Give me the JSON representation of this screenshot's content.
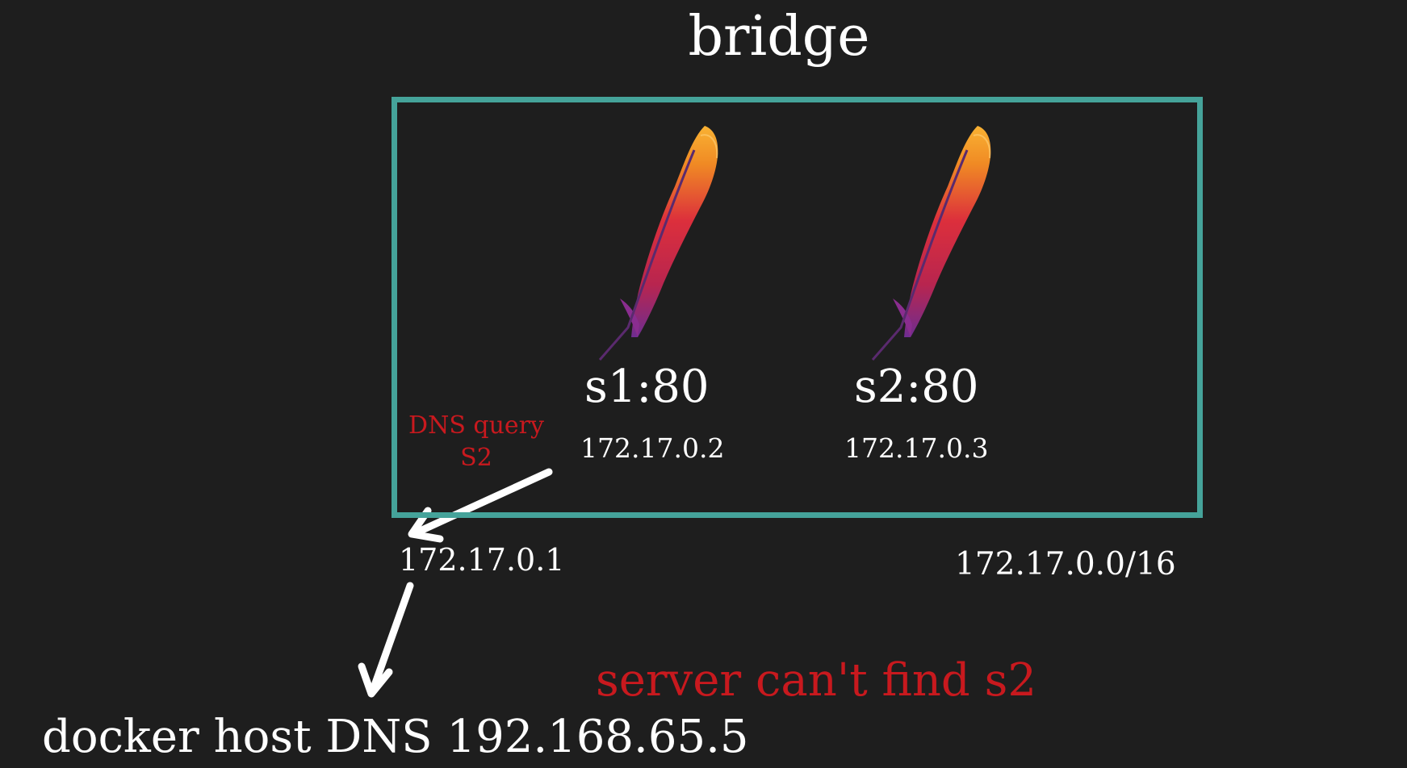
{
  "diagram": {
    "title": "bridge",
    "containers": [
      {
        "name": "s1:80",
        "ip": "172.17.0.2",
        "icon": "apache-feather-icon"
      },
      {
        "name": "s2:80",
        "ip": "172.17.0.3",
        "icon": "apache-feather-icon"
      }
    ],
    "dns_query": {
      "line1": "DNS query",
      "line2": "S2"
    },
    "gateway_ip": "172.17.0.1",
    "subnet": "172.17.0.0/16",
    "error_message": "server can't find s2",
    "host_dns": "docker host DNS 192.168.65.5",
    "colors": {
      "background": "#1e1e1e",
      "bridge_border": "#45a39a",
      "error_text": "#c8191e",
      "feather_top": "#f7a21c",
      "feather_mid": "#d9293a",
      "feather_bottom": "#7b3294"
    }
  }
}
